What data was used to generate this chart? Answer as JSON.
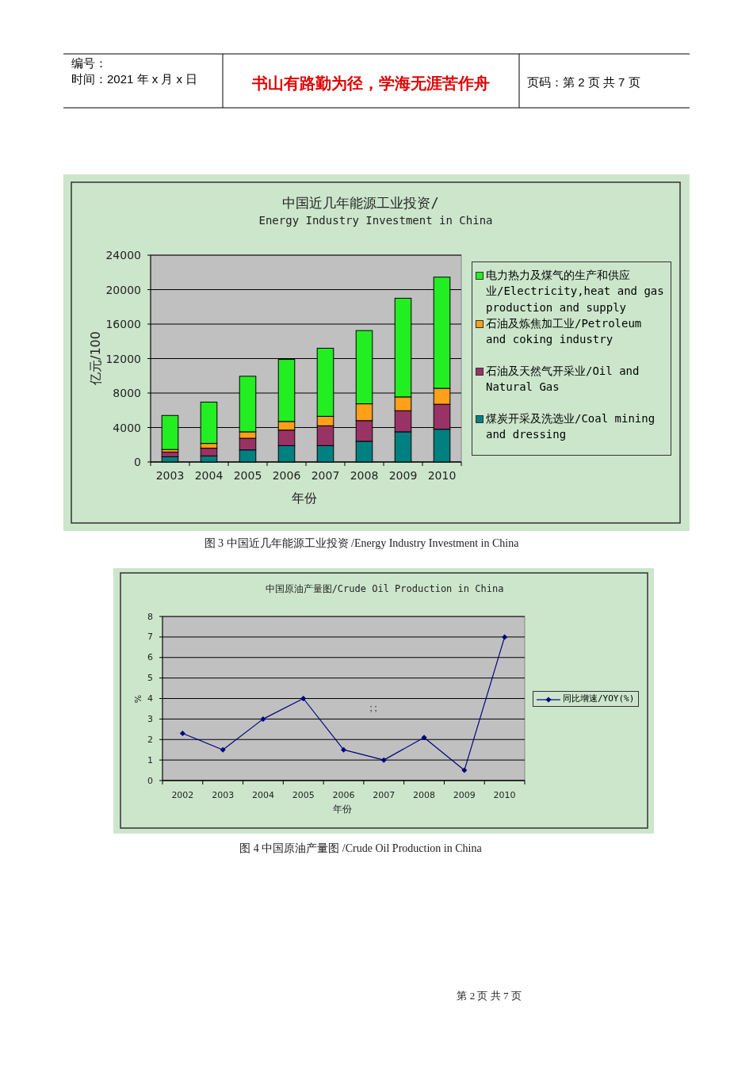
{
  "chart_data": [
    {
      "type": "bar",
      "stacked": true,
      "title": "中国近几年能源工业投资/",
      "subtitle": "Energy Industry Investment in China",
      "xlabel": "年份",
      "ylabel": "亿元/100",
      "categories": [
        "2003",
        "2004",
        "2005",
        "2006",
        "2007",
        "2008",
        "2009",
        "2010"
      ],
      "series": [
        {
          "name": "煤炭开采及洗选业/Coal mining and dressing",
          "color": "#008080",
          "values": [
            600,
            700,
            1400,
            1900,
            1900,
            2400,
            3500,
            3800
          ]
        },
        {
          "name": "石油及天然气开采业/Oil and Natural Gas",
          "color": "#993366",
          "values": [
            550,
            900,
            1350,
            1800,
            2300,
            2400,
            2450,
            2900
          ]
        },
        {
          "name": "石油及炼焦加工业/Petroleum and coking industry",
          "color": "#ff9f1a",
          "values": [
            300,
            550,
            750,
            1000,
            1100,
            1950,
            1600,
            1850
          ]
        },
        {
          "name": "电力热力及煤气的生产和供应业/Electricity,heat and gas production and supply",
          "color": "#22ee22",
          "values": [
            3950,
            4800,
            6450,
            7200,
            7900,
            8500,
            11450,
            12900
          ]
        }
      ],
      "ylim": [
        0,
        24000
      ],
      "yticks": [
        0,
        4000,
        8000,
        12000,
        16000,
        20000,
        24000
      ],
      "grid": "y",
      "legend": "right",
      "annotations": [
        "编号：",
        "时间：2021 年 x 月 x 日",
        "书山有路勤为径，学海无涯苦作舟",
        "页码：第 2 页  共 7 页",
        "图 3  中国近几年能源工业投资 /Energy Industry Investment in China"
      ]
    },
    {
      "type": "line",
      "title": "中国原油产量图/Crude Oil Production in China",
      "xlabel": "年份",
      "ylabel": "%",
      "categories": [
        "2002",
        "2003",
        "2004",
        "2005",
        "2006",
        "2007",
        "2008",
        "2009",
        "2010"
      ],
      "series": [
        {
          "name": "同比增速/YOY(%)",
          "color": "#000080",
          "values": [
            2.3,
            1.5,
            3,
            4,
            1.5,
            1,
            2.1,
            0.5,
            7
          ]
        }
      ],
      "ylim": [
        0,
        8
      ],
      "yticks": [
        0,
        1,
        2,
        3,
        4,
        5,
        6,
        7,
        8
      ],
      "grid": "y",
      "legend": "right",
      "marker": "diamond",
      "line_style": "solid",
      "annotations": [
        "; ;",
        "图 4  中国原油产量图 /Crude Oil Production in China",
        "第 2 页  共 7 页"
      ]
    }
  ]
}
